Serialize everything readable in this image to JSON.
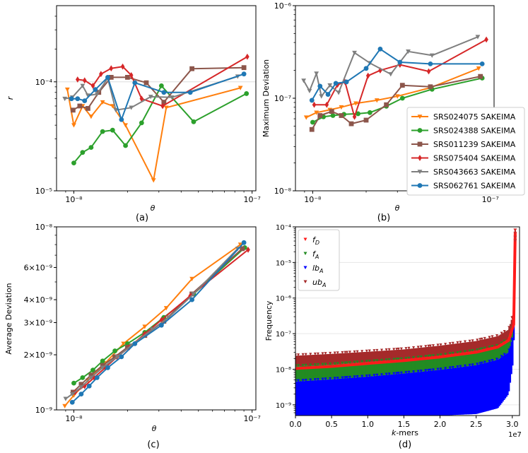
{
  "chart_data": [
    {
      "id": "a",
      "type": "line",
      "caption": "(a)",
      "xscale": "log",
      "yscale": "log",
      "xlim": [
        8e-09,
        1.05e-07
      ],
      "ylim": [
        1e-05,
        0.0005
      ],
      "xlabel": "θ",
      "ylabel": "r",
      "xticks": [
        {
          "v": 1e-08,
          "label": "10⁻⁸"
        },
        {
          "v": 1e-07,
          "label": "10⁻⁷"
        }
      ],
      "yticks": [
        {
          "v": 1e-05,
          "label": "10⁻⁵"
        },
        {
          "v": 0.0001,
          "label": "10⁻⁴"
        }
      ],
      "hline": 0.0001,
      "series": [
        {
          "name": "SRS024075 SAKEIMA",
          "color": "#ff7f0e",
          "marker": "v",
          "x": [
            9.2e-09,
            1e-08,
            1.12e-08,
            1.25e-08,
            1.45e-08,
            1.65e-08,
            1.95e-08,
            2.8e-08,
            3.3e-08,
            8.6e-08
          ],
          "y": [
            8.5e-05,
            4e-05,
            6e-05,
            4.8e-05,
            6.5e-05,
            6e-05,
            4e-05,
            1.25e-05,
            5.8e-05,
            8.8e-05
          ]
        },
        {
          "name": "SRS024388 SAKEIMA",
          "color": "#2ca02c",
          "marker": "o",
          "x": [
            1e-08,
            1.12e-08,
            1.25e-08,
            1.45e-08,
            1.65e-08,
            1.95e-08,
            2.4e-08,
            3.1e-08,
            4.7e-08,
            9.3e-08
          ],
          "y": [
            1.8e-05,
            2.25e-05,
            2.5e-05,
            3.5e-05,
            3.6e-05,
            2.6e-05,
            4.2e-05,
            9.2e-05,
            4.3e-05,
            7.8e-05
          ]
        },
        {
          "name": "SRS011239 SAKEIMA",
          "color": "#8c564b",
          "marker": "s",
          "x": [
            9.9e-09,
            1.08e-08,
            1.2e-08,
            1.38e-08,
            1.62e-08,
            2e-08,
            2.55e-08,
            3.2e-08,
            4.6e-08,
            9e-08
          ],
          "y": [
            5.5e-05,
            6e-05,
            5.7e-05,
            8e-05,
            0.00011,
            0.00011,
            9.8e-05,
            6.5e-05,
            0.000132,
            0.000135
          ]
        },
        {
          "name": "SRS075404 SAKEIMA",
          "color": "#d62728",
          "marker": "d",
          "x": [
            1.05e-08,
            1.15e-08,
            1.28e-08,
            1.42e-08,
            1.62e-08,
            1.88e-08,
            2.1e-08,
            2.4e-08,
            3.15e-08,
            9.4e-08
          ],
          "y": [
            0.000105,
            0.000103,
            9.2e-05,
            0.000118,
            0.000133,
            0.000138,
            0.000115,
            7e-05,
            6e-05,
            0.00017
          ]
        },
        {
          "name": "SRS043663 SAKEIMA",
          "color": "#7f7f7f",
          "marker": "v",
          "x": [
            8.9e-09,
            9.8e-09,
            1.12e-08,
            1.2e-08,
            1.35e-08,
            1.55e-08,
            1.72e-08,
            2.1e-08,
            2.7e-08,
            3.55e-08,
            8.3e-08
          ],
          "y": [
            7e-05,
            7.2e-05,
            9.2e-05,
            7.5e-05,
            7.7e-05,
            0.000108,
            5.5e-05,
            5.8e-05,
            7.3e-05,
            7.2e-05,
            0.000112
          ]
        },
        {
          "name": "SRS062761 SAKEIMA",
          "color": "#1f77b4",
          "marker": "o",
          "x": [
            9.7e-09,
            1.05e-08,
            1.15e-08,
            1.32e-08,
            1.55e-08,
            1.85e-08,
            2.2e-08,
            3.2e-08,
            4.5e-08,
            9e-08
          ],
          "y": [
            7e-05,
            7e-05,
            6.7e-05,
            8.5e-05,
            0.00011,
            4.5e-05,
            9.8e-05,
            8e-05,
            8e-05,
            0.000118
          ]
        }
      ]
    },
    {
      "id": "b",
      "type": "line",
      "caption": "(b)",
      "xscale": "log",
      "yscale": "log",
      "xlim": [
        8e-09,
        1.05e-07
      ],
      "ylim": [
        1e-08,
        1e-06
      ],
      "xlabel": "θ",
      "ylabel": "Maximum Deviation",
      "xticks": [
        {
          "v": 1e-08,
          "label": "10⁻⁸"
        },
        {
          "v": 1e-07,
          "label": "10⁻⁷"
        }
      ],
      "yticks": [
        {
          "v": 1e-08,
          "label": "10⁻⁸"
        },
        {
          "v": 1e-07,
          "label": "10⁻⁷"
        },
        {
          "v": 1e-06,
          "label": "10⁻⁶"
        }
      ],
      "legend": "right",
      "series": [
        {
          "name": "SRS024075 SAKEIMA",
          "color": "#ff7f0e",
          "marker": "v",
          "x": [
            9.2e-09,
            1.05e-08,
            1.25e-08,
            1.45e-08,
            1.75e-08,
            2.3e-08,
            3e-08,
            4.6e-08,
            8.6e-08
          ],
          "y": [
            6.2e-08,
            7e-08,
            7.5e-08,
            8e-08,
            8.8e-08,
            9.5e-08,
            1.05e-07,
            1.3e-07,
            2.1e-07
          ]
        },
        {
          "name": "SRS024388 SAKEIMA",
          "color": "#2ca02c",
          "marker": "o",
          "x": [
            1e-08,
            1.15e-08,
            1.3e-08,
            1.5e-08,
            1.8e-08,
            2.1e-08,
            2.6e-08,
            3.2e-08,
            4.7e-08,
            9e-08
          ],
          "y": [
            5.5e-08,
            6.3e-08,
            6.5e-08,
            6.7e-08,
            6.8e-08,
            7e-08,
            8.2e-08,
            1e-07,
            1.25e-07,
            1.65e-07
          ]
        },
        {
          "name": "SRS011239 SAKEIMA",
          "color": "#8c564b",
          "marker": "s",
          "x": [
            9.9e-09,
            1.1e-08,
            1.28e-08,
            1.45e-08,
            1.65e-08,
            2e-08,
            2.6e-08,
            3.2e-08,
            4.6e-08,
            8.8e-08
          ],
          "y": [
            4.6e-08,
            6.5e-08,
            7.2e-08,
            6.5e-08,
            5.3e-08,
            5.8e-08,
            8.5e-08,
            1.38e-07,
            1.33e-07,
            1.72e-07
          ]
        },
        {
          "name": "SRS075404 SAKEIMA",
          "color": "#d62728",
          "marker": "d",
          "x": [
            1.02e-08,
            1.2e-08,
            1.38e-08,
            1.52e-08,
            1.72e-08,
            2.05e-08,
            2.4e-08,
            3.1e-08,
            4.5e-08,
            9.5e-08
          ],
          "y": [
            8.5e-08,
            8.5e-08,
            1.4e-07,
            1.5e-07,
            6.3e-08,
            1.75e-07,
            2e-07,
            2.3e-07,
            1.95e-07,
            4.3e-07
          ]
        },
        {
          "name": "SRS043663 SAKEIMA",
          "color": "#7f7f7f",
          "marker": "v",
          "x": [
            8.9e-09,
            9.6e-09,
            1.05e-08,
            1.12e-08,
            1.25e-08,
            1.4e-08,
            1.72e-08,
            2.1e-08,
            2.75e-08,
            3.45e-08,
            4.7e-08,
            8.5e-08
          ],
          "y": [
            1.55e-07,
            1.2e-07,
            1.85e-07,
            1.05e-07,
            1.38e-07,
            1.15e-07,
            3.1e-07,
            2.4e-07,
            1.82e-07,
            3.2e-07,
            2.9e-07,
            4.6e-07
          ]
        },
        {
          "name": "SRS062761 SAKEIMA",
          "color": "#1f77b4",
          "marker": "o",
          "x": [
            9.9e-09,
            1.1e-08,
            1.22e-08,
            1.35e-08,
            1.55e-08,
            2e-08,
            2.4e-08,
            3.1e-08,
            4.6e-08,
            9e-08
          ],
          "y": [
            9.5e-08,
            1.35e-07,
            1.1e-07,
            1.45e-07,
            1.5e-07,
            2.1e-07,
            3.4e-07,
            2.45e-07,
            2.35e-07,
            2.35e-07
          ]
        }
      ]
    },
    {
      "id": "c",
      "type": "line",
      "caption": "(c)",
      "xscale": "log",
      "yscale": "log",
      "xlim": [
        8e-09,
        1.05e-07
      ],
      "ylim": [
        1e-09,
        1e-08
      ],
      "xlabel": "θ",
      "ylabel": "Average Deviation",
      "xticks": [
        {
          "v": 1e-08,
          "label": "10⁻⁸"
        },
        {
          "v": 1e-07,
          "label": "10⁻⁷"
        }
      ],
      "yticks": [
        {
          "v": 1e-09,
          "label": "10⁻⁹"
        },
        {
          "v": 2e-09,
          "label": "2×10⁻⁹"
        },
        {
          "v": 3e-09,
          "label": "3×10⁻⁹"
        },
        {
          "v": 4e-09,
          "label": "4×10⁻⁹"
        },
        {
          "v": 6e-09,
          "label": "6×10⁻⁹"
        },
        {
          "v": 1e-08,
          "label": "10⁻⁸"
        }
      ],
      "series": [
        {
          "name": "SRS024075 SAKEIMA",
          "color": "#ff7f0e",
          "marker": "v",
          "x": [
            8.9e-09,
            1e-08,
            1.2e-08,
            1.5e-08,
            1.9e-08,
            2.5e-08,
            3.3e-08,
            4.6e-08,
            8.6e-08
          ],
          "y": [
            1.05e-09,
            1.2e-09,
            1.45e-09,
            1.8e-09,
            2.3e-09,
            2.85e-09,
            3.6e-09,
            5.2e-09,
            8e-09
          ]
        },
        {
          "name": "SRS024388 SAKEIMA",
          "color": "#2ca02c",
          "marker": "o",
          "x": [
            1e-08,
            1.12e-08,
            1.28e-08,
            1.45e-08,
            1.7e-08,
            2e-08,
            2.5e-08,
            3.2e-08,
            4.7e-08,
            9.1e-08
          ],
          "y": [
            1.4e-09,
            1.5e-09,
            1.65e-09,
            1.85e-09,
            2.1e-09,
            2.3e-09,
            2.65e-09,
            3.2e-09,
            4.3e-09,
            7.7e-09
          ]
        },
        {
          "name": "SRS011239 SAKEIMA",
          "color": "#8c564b",
          "marker": "s",
          "x": [
            9.9e-09,
            1.1e-08,
            1.25e-08,
            1.45e-08,
            1.7e-08,
            2e-08,
            2.5e-08,
            3.2e-08,
            4.6e-08,
            8.8e-08
          ],
          "y": [
            1.25e-09,
            1.38e-09,
            1.55e-09,
            1.75e-09,
            1.95e-09,
            2.2e-09,
            2.55e-09,
            3.05e-09,
            4.3e-09,
            7.6e-09
          ]
        },
        {
          "name": "SRS075404 SAKEIMA",
          "color": "#d62728",
          "marker": "d",
          "x": [
            1.02e-08,
            1.15e-08,
            1.3e-08,
            1.5e-08,
            1.75e-08,
            2.05e-08,
            2.5e-08,
            3.1e-08,
            4.5e-08,
            9.5e-08
          ],
          "y": [
            1.25e-09,
            1.35e-09,
            1.5e-09,
            1.7e-09,
            1.95e-09,
            2.2e-09,
            2.6e-09,
            3.1e-09,
            4.2e-09,
            7.5e-09
          ]
        },
        {
          "name": "SRS043663 SAKEIMA",
          "color": "#7f7f7f",
          "marker": "v",
          "x": [
            9e-09,
            9.8e-09,
            1.1e-08,
            1.25e-08,
            1.45e-08,
            1.75e-08,
            2.1e-08,
            2.75e-08,
            3.4e-08,
            4.7e-08,
            8.3e-08
          ],
          "y": [
            1.15e-09,
            1.22e-09,
            1.33e-09,
            1.5e-09,
            1.7e-09,
            1.95e-09,
            2.25e-09,
            2.75e-09,
            3.2e-09,
            4.3e-09,
            7.6e-09
          ]
        },
        {
          "name": "SRS062761 SAKEIMA",
          "color": "#1f77b4",
          "marker": "o",
          "x": [
            9.8e-09,
            1.1e-08,
            1.22e-08,
            1.35e-08,
            1.55e-08,
            1.85e-08,
            2.2e-08,
            3.1e-08,
            4.6e-08,
            9e-08
          ],
          "y": [
            1.1e-09,
            1.22e-09,
            1.35e-09,
            1.5e-09,
            1.7e-09,
            1.95e-09,
            2.3e-09,
            2.9e-09,
            4e-09,
            8.2e-09
          ]
        }
      ]
    },
    {
      "id": "d",
      "type": "scatter",
      "caption": "(d)",
      "xscale": "linear",
      "yscale": "log",
      "xlim": [
        0,
        31000000
      ],
      "ylim": [
        5e-10,
        0.0001
      ],
      "xlabel": "k-mers",
      "ylabel": "Frequency",
      "xoffset_label": "1e7",
      "xticks": [
        {
          "v": 0,
          "label": "0.0"
        },
        {
          "v": 5000000,
          "label": "0.5"
        },
        {
          "v": 10000000,
          "label": "1.0"
        },
        {
          "v": 15000000,
          "label": "1.5"
        },
        {
          "v": 20000000,
          "label": "2.0"
        },
        {
          "v": 25000000,
          "label": "2.5"
        },
        {
          "v": 30000000,
          "label": "3.0"
        }
      ],
      "yticks": [
        {
          "v": 1e-09,
          "label": "10⁻⁹"
        },
        {
          "v": 1e-08,
          "label": "10⁻⁸"
        },
        {
          "v": 1e-07,
          "label": "10⁻⁷"
        },
        {
          "v": 1e-06,
          "label": "10⁻⁶"
        },
        {
          "v": 1e-05,
          "label": "10⁻⁵"
        },
        {
          "v": 0.0001,
          "label": "10⁻⁴"
        }
      ],
      "legend": "top-left",
      "series": [
        {
          "name": "ub_A",
          "label_main": "ub",
          "label_sub": "A",
          "color": "#a52a2a",
          "x": [
            0,
            5000000,
            10000000,
            15000000,
            20000000,
            25000000,
            28000000,
            29500000,
            30200000,
            30400000
          ],
          "low": [
            1.2e-08,
            1.35e-08,
            1.6e-08,
            1.9e-08,
            2.4e-08,
            3.3e-08,
            4.5e-08,
            7e-08,
            2e-07,
            6e-05
          ],
          "high": [
            2.4e-08,
            2.7e-08,
            3.1e-08,
            3.6e-08,
            4.6e-08,
            6.2e-08,
            8.5e-08,
            1.3e-07,
            4e-07,
            8e-05
          ]
        },
        {
          "name": "f_A",
          "label_main": "f",
          "label_sub": "A",
          "color": "#228b22",
          "x": [
            0,
            5000000,
            10000000,
            15000000,
            20000000,
            25000000,
            28000000,
            29500000,
            30200000,
            30400000
          ],
          "low": [
            4.5e-09,
            5.2e-09,
            6.2e-09,
            7.6e-09,
            9.6e-09,
            1.3e-08,
            1.85e-08,
            3e-08,
            1e-07,
            5e-05
          ],
          "high": [
            1.2e-08,
            1.35e-08,
            1.6e-08,
            1.9e-08,
            2.4e-08,
            3.3e-08,
            4.5e-08,
            7e-08,
            2e-07,
            6e-05
          ]
        },
        {
          "name": "lb_A",
          "label_main": "lb",
          "label_sub": "A",
          "color": "#0000ff",
          "x": [
            0,
            5000000,
            10000000,
            15000000,
            20000000,
            25000000,
            28000000,
            29500000,
            30200000,
            30400000
          ],
          "low": [
            5e-10,
            5e-10,
            5e-10,
            5e-10,
            5e-10,
            5.5e-10,
            8e-10,
            2e-09,
            2e-08,
            4e-05
          ],
          "high": [
            4.5e-09,
            5.2e-09,
            6.2e-09,
            7.6e-09,
            9.6e-09,
            1.3e-08,
            1.85e-08,
            3e-08,
            1e-07,
            5e-05
          ]
        },
        {
          "name": "f_D",
          "label_main": "f",
          "label_sub": "D",
          "color": "#ff1a1a",
          "x": [
            0,
            5000000,
            10000000,
            15000000,
            20000000,
            25000000,
            28000000,
            29500000,
            30200000,
            30400000
          ],
          "y": [
            1.05e-08,
            1.2e-08,
            1.45e-08,
            1.75e-08,
            2.2e-08,
            3e-08,
            4.2e-08,
            6.5e-08,
            1.8e-07,
            7e-05
          ]
        }
      ]
    }
  ]
}
